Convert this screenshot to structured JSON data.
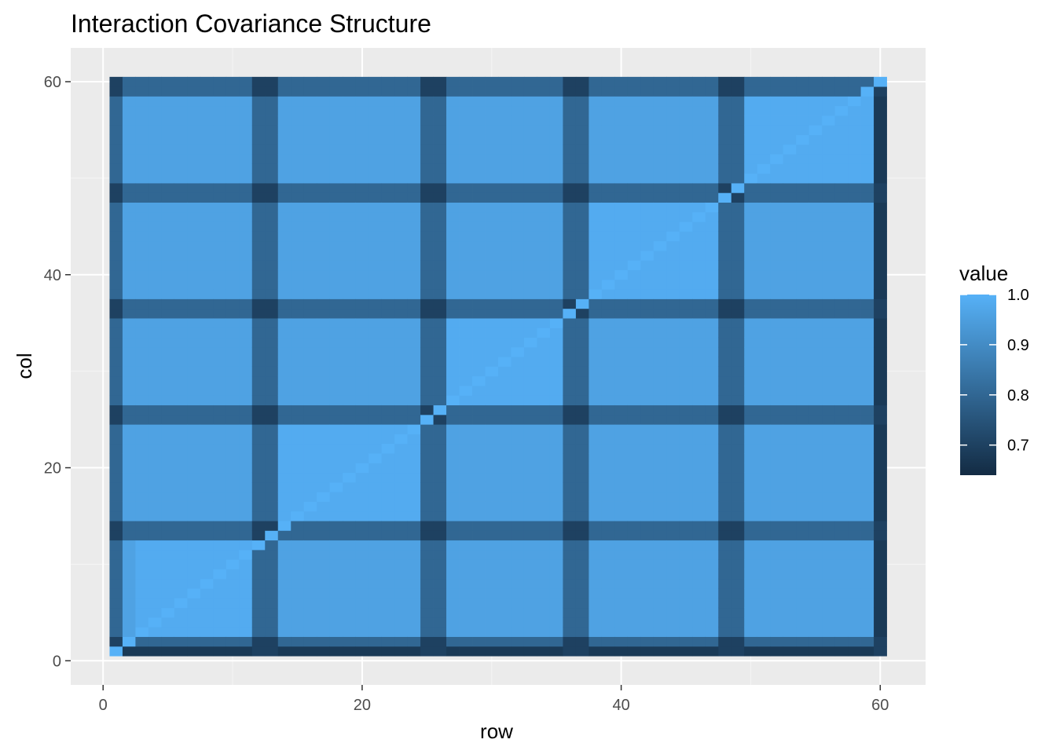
{
  "chart_data": {
    "type": "heatmap",
    "title": "Interaction Covariance Structure",
    "xlabel": "row",
    "ylabel": "col",
    "xlim": [
      -2.5,
      63.5
    ],
    "ylim": [
      -2.5,
      63.5
    ],
    "x_ticks": [
      0,
      20,
      40,
      60
    ],
    "y_ticks": [
      0,
      20,
      40,
      60
    ],
    "x_tick_labels": [
      "0",
      "20",
      "40",
      "60"
    ],
    "y_tick_labels": [
      "0",
      "20",
      "40",
      "60"
    ],
    "grid": true,
    "n": 60,
    "block_starts": [
      1,
      3,
      13,
      26,
      37,
      48
    ],
    "block_ends": [
      2,
      12,
      25,
      36,
      47,
      60
    ],
    "block_colmap": [
      [
        1,
        3,
        13,
        26,
        37,
        48
      ],
      [
        2,
        1,
        14,
        27,
        38,
        49
      ],
      [
        3,
        13,
        1,
        25,
        36,
        47
      ],
      [
        4,
        26,
        25,
        1,
        13,
        24
      ],
      [
        5,
        37,
        36,
        13,
        1,
        13
      ],
      [
        6,
        48,
        47,
        24,
        13,
        1
      ]
    ],
    "value_matrix_note": "",
    "strip_rows": [
      1,
      12,
      13,
      25,
      26,
      36,
      37,
      48,
      49,
      60
    ],
    "strip_cols": [
      1,
      2,
      13,
      14,
      25,
      26,
      36,
      37,
      48,
      49,
      59,
      60
    ],
    "diag_value": 1.0,
    "within_block_value": 0.985,
    "between_block_value": 0.96,
    "strip_value": 0.8,
    "strip_cross_value": 0.7,
    "edge_strip_value": 0.68,
    "value_range": [
      0.64,
      1.0
    ]
  },
  "legend": {
    "title": "value",
    "ticks": [
      1.0,
      0.9,
      0.8,
      0.7
    ],
    "tick_labels": [
      "1.0",
      "0.9",
      "0.8",
      "0.7"
    ],
    "low_color": "#132b43",
    "high_color": "#56b1f7"
  },
  "colors": {
    "panel_bg": "#ebebeb",
    "grid_major": "#ffffff",
    "grid_minor": "#f5f5f5"
  }
}
